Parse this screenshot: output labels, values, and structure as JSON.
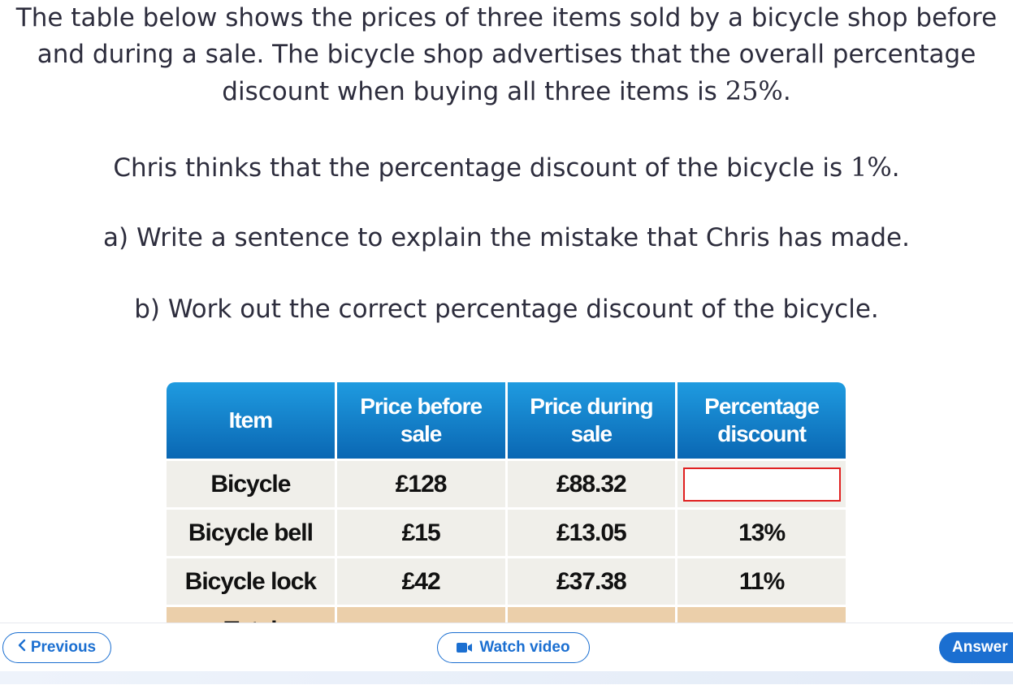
{
  "question": {
    "intro_text": "The table below shows the prices of three items sold by a bicycle shop before and during a sale. The bicycle shop advertises that the overall percentage discount when buying all three items is ",
    "intro_value": "25%",
    "intro_end": ".",
    "chris_text": "Chris thinks that the percentage discount of the bicycle is ",
    "chris_value": "1%",
    "chris_end": ".",
    "part_a": "a) Write a sentence to explain the mistake that Chris has made.",
    "part_b": "b) Work out the correct percentage discount of the bicycle."
  },
  "table": {
    "headers": [
      "Item",
      "Price before sale",
      "Price during sale",
      "Percentage discount"
    ],
    "rows": [
      {
        "item": "Bicycle",
        "before": "£128",
        "during": "£88.32",
        "discount": ""
      },
      {
        "item": "Bicycle bell",
        "before": "£15",
        "during": "£13.05",
        "discount": "13%"
      },
      {
        "item": "Bicycle lock",
        "before": "£42",
        "during": "£37.38",
        "discount": "11%"
      },
      {
        "item": "Total",
        "before": "",
        "during": "",
        "discount": ""
      }
    ],
    "answer_box_color": "#e02020",
    "header_color": "#0a67b3",
    "total_row_color": "#ebcfaa"
  },
  "nav": {
    "previous_label": "Previous",
    "previous_icon": "chevron-left-icon",
    "video_label": "Watch video",
    "video_icon": "video-camera-icon",
    "answer_label": "Answer",
    "accent_color": "#1b6fd1"
  }
}
